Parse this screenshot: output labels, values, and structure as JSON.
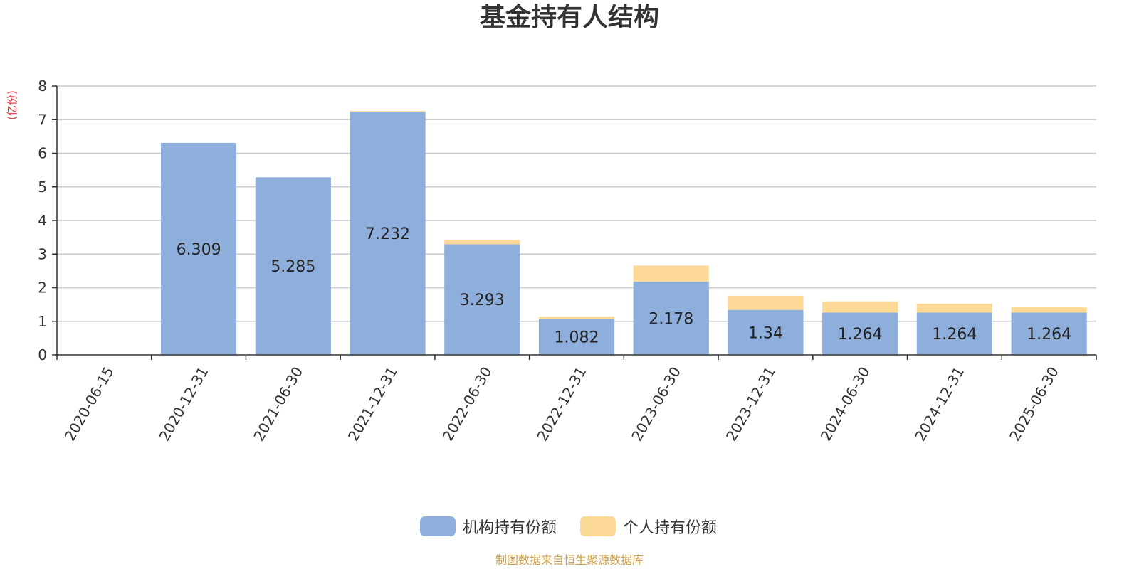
{
  "chart_data": {
    "type": "bar",
    "stacked": true,
    "title": "基金持有人结构",
    "unit_label": "(亿份)",
    "categories": [
      "2020-06-15",
      "2020-12-31",
      "2021-06-30",
      "2021-12-31",
      "2022-06-30",
      "2022-12-31",
      "2023-06-30",
      "2023-12-31",
      "2024-06-30",
      "2024-12-31",
      "2025-06-30"
    ],
    "series": [
      {
        "name": "机构持有份额",
        "color": "#8eaedb",
        "values": [
          0,
          6.309,
          5.285,
          7.232,
          3.293,
          1.082,
          2.178,
          1.34,
          1.264,
          1.264,
          1.264
        ],
        "labels": [
          "",
          "6.309",
          "5.285",
          "7.232",
          "3.293",
          "1.082",
          "2.178",
          "1.34",
          "1.264",
          "1.264",
          "1.264"
        ]
      },
      {
        "name": "个人持有份额",
        "color": "#fdd998",
        "values": [
          0,
          0.0,
          0.0,
          0.03,
          0.13,
          0.06,
          0.48,
          0.42,
          0.33,
          0.26,
          0.15
        ]
      }
    ],
    "ylim": [
      0,
      8
    ],
    "yticks": [
      "0",
      "1",
      "2",
      "3",
      "4",
      "5",
      "6",
      "7",
      "8"
    ],
    "grid": true,
    "legend_position": "bottom-center"
  },
  "footer": {
    "source": "制图数据来自恒生聚源数据库"
  }
}
